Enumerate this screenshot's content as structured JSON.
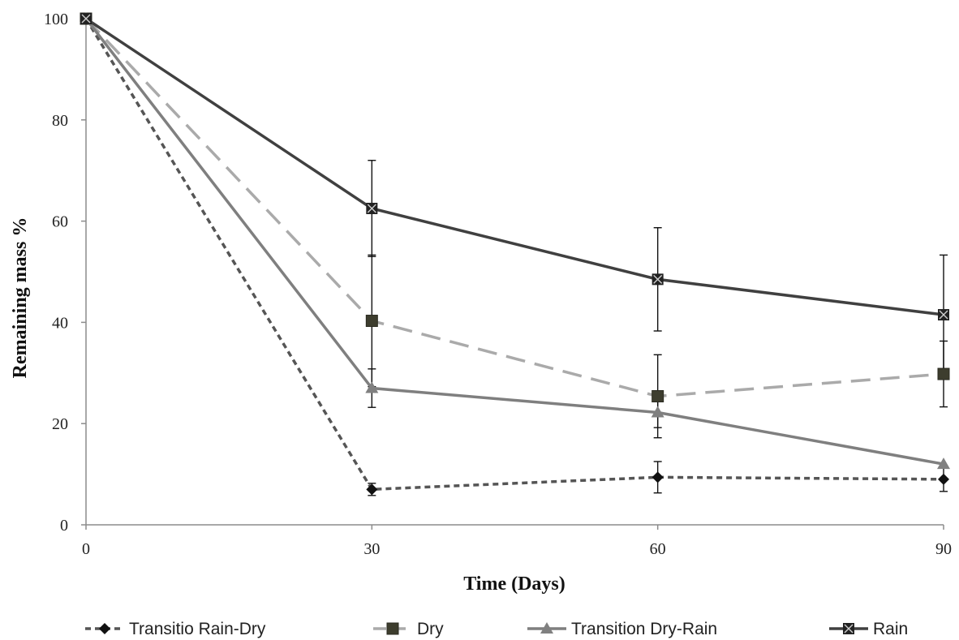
{
  "chart_data": {
    "type": "line",
    "title": "",
    "xlabel": "Time (Days)",
    "ylabel": "Remaining mass %",
    "x": [
      0,
      30,
      60,
      90
    ],
    "xlim": [
      0,
      90
    ],
    "ylim": [
      0,
      100
    ],
    "x_ticks": [
      "0",
      "30",
      "60",
      "90"
    ],
    "y_ticks": [
      "0",
      "20",
      "40",
      "60",
      "80",
      "100"
    ],
    "grid": false,
    "legend_position": "bottom",
    "series": [
      {
        "name": "Transitio Rain-Dry",
        "values": [
          100,
          7,
          9.4,
          9
        ],
        "errors": [
          null,
          1.2,
          3.1,
          2.4
        ],
        "color": "#555555",
        "line_style": "dotted",
        "marker": "diamond",
        "marker_color": "#111111"
      },
      {
        "name": "Dry",
        "values": [
          100,
          40.3,
          25.4,
          29.8
        ],
        "errors": [
          null,
          13,
          8.2,
          6.5
        ],
        "color": "#aaaaaa",
        "line_style": "dashed",
        "marker": "square",
        "marker_color": "#3d3d2e"
      },
      {
        "name": "Transition Dry-Rain",
        "values": [
          100,
          27,
          22.2,
          12
        ],
        "errors": [
          null,
          3.8,
          3,
          0
        ],
        "color": "#7f7f7f",
        "line_style": "solid",
        "marker": "triangle",
        "marker_color": "#808080"
      },
      {
        "name": "Rain",
        "values": [
          100,
          62.5,
          48.5,
          41.5
        ],
        "errors": [
          null,
          9.5,
          10.2,
          11.8
        ],
        "color": "#404040",
        "line_style": "solid",
        "marker": "x-square",
        "marker_color": "#222222"
      }
    ]
  }
}
